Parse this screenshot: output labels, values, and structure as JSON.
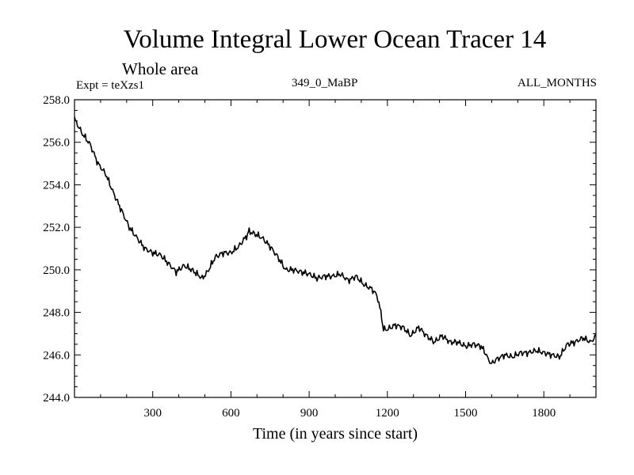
{
  "chart_data": {
    "type": "line",
    "title": "Volume Integral Lower Ocean Tracer 14",
    "subtitle": "Whole area",
    "expt_label": "Expt = teXzs1",
    "center_label": "349_0_MaBP",
    "right_label": "ALL_MONTHS",
    "xlabel": "Time (in years since start)",
    "ylabel": "",
    "xlim": [
      0,
      2000
    ],
    "ylim": [
      244.0,
      258.0
    ],
    "xticks": [
      300,
      600,
      900,
      1200,
      1500,
      1800
    ],
    "xtick_labels": [
      "300",
      "600",
      "900",
      "1200",
      "1500",
      "1800"
    ],
    "yticks": [
      244,
      246,
      248,
      250,
      252,
      254,
      256,
      258
    ],
    "ytick_labels": [
      "244.0",
      "246.0",
      "248.0",
      "250.0",
      "252.0",
      "254.0",
      "256.0",
      "258.0"
    ],
    "series": [
      {
        "name": "Tracer 14",
        "color": "#000000",
        "x": [
          0,
          30,
          60,
          90,
          120,
          150,
          180,
          210,
          240,
          270,
          300,
          330,
          360,
          390,
          420,
          450,
          470,
          490,
          510,
          540,
          570,
          600,
          630,
          660,
          670,
          690,
          720,
          750,
          780,
          810,
          840,
          870,
          900,
          930,
          960,
          990,
          1020,
          1050,
          1080,
          1110,
          1140,
          1160,
          1175,
          1185,
          1200,
          1230,
          1260,
          1290,
          1320,
          1350,
          1380,
          1410,
          1440,
          1470,
          1500,
          1530,
          1560,
          1580,
          1590,
          1600,
          1620,
          1650,
          1680,
          1710,
          1740,
          1770,
          1800,
          1830,
          1860,
          1890,
          1920,
          1950,
          1980,
          2000
        ],
        "values": [
          257.1,
          256.4,
          255.9,
          255.0,
          254.5,
          253.6,
          252.8,
          252.0,
          251.5,
          251.0,
          250.8,
          250.7,
          250.3,
          249.9,
          250.2,
          250.0,
          249.8,
          249.6,
          249.9,
          250.6,
          250.8,
          250.8,
          251.1,
          251.6,
          251.8,
          251.7,
          251.5,
          251.1,
          250.6,
          250.0,
          250.0,
          249.9,
          249.8,
          249.6,
          249.7,
          249.7,
          249.8,
          249.5,
          249.7,
          249.3,
          249.1,
          248.8,
          248.0,
          247.2,
          247.2,
          247.4,
          247.3,
          246.9,
          247.3,
          246.9,
          246.6,
          246.9,
          246.6,
          246.6,
          246.4,
          246.5,
          246.4,
          246.0,
          245.7,
          245.6,
          245.8,
          246.0,
          245.9,
          246.1,
          246.1,
          246.2,
          246.1,
          246.0,
          245.9,
          246.5,
          246.6,
          246.8,
          246.6,
          246.9
        ]
      }
    ]
  }
}
